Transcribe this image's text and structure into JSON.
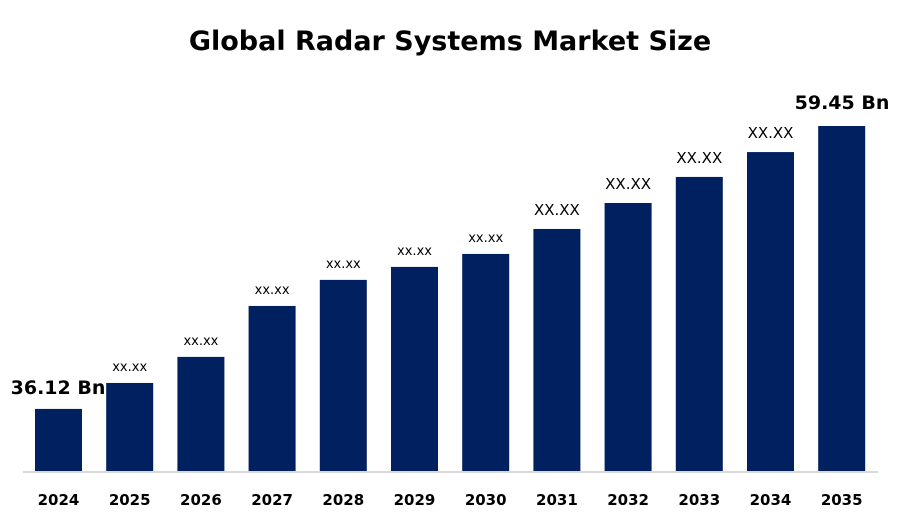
{
  "chart_data": {
    "type": "bar",
    "title": "Global Radar Systems Market Size",
    "xlabel": "",
    "ylabel": "",
    "categories": [
      "2024",
      "2025",
      "2026",
      "2027",
      "2028",
      "2029",
      "2030",
      "2031",
      "2032",
      "2033",
      "2034",
      "2035"
    ],
    "values": [
      36.12,
      38.26,
      40.41,
      44.61,
      46.76,
      47.83,
      48.9,
      50.96,
      53.1,
      55.25,
      57.3,
      59.45
    ],
    "data_labels": [
      "36.12 Bn",
      "xx.xx",
      "xx.xx",
      "xx.xx",
      "xx.xx",
      "xx.xx",
      "xx.xx",
      "XX.XX",
      "XX.XX",
      "XX.XX",
      "XX.XX",
      "59.45 Bn"
    ],
    "ylim": [
      31,
      60
    ],
    "grid": false,
    "legend": "none",
    "bar_color": "#002060",
    "axis_color": "#d9d9d9"
  }
}
